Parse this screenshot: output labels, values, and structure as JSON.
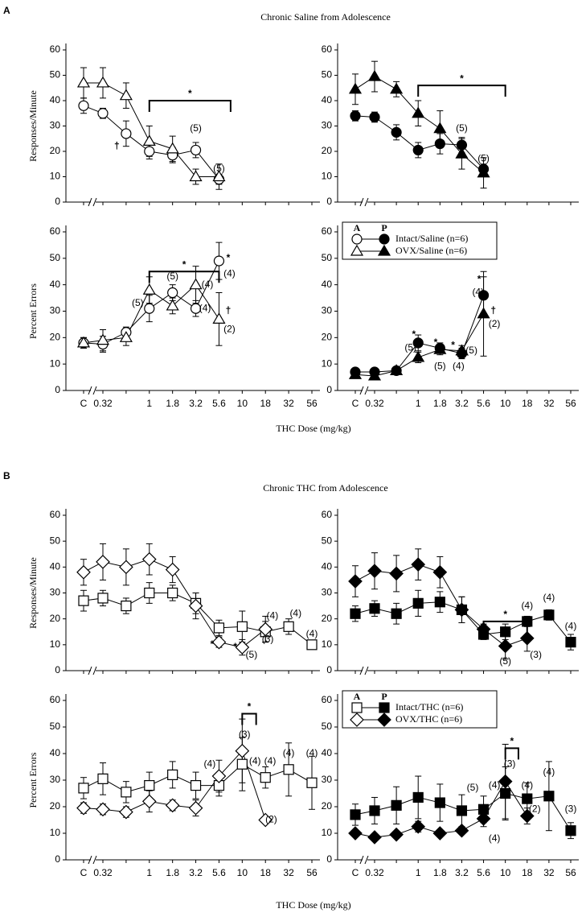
{
  "chart_data": [
    {
      "label": "A",
      "title": "Chronic Saline from Adolescence",
      "xlabel": "THC Dose (mg/kg)",
      "charts": [
        {
          "type": "line",
          "ylabel": "Responses/Minute",
          "ylim": [
            0,
            60
          ],
          "yticks": [
            0,
            10,
            20,
            30,
            40,
            50,
            60
          ],
          "series": [
            {
              "marker": "circle",
              "marker_fill": "white",
              "color": "#000000",
              "values": [
                38,
                35,
                27,
                20,
                18.5,
                20.5,
                9
              ],
              "errors": [
                3,
                2,
                5,
                3,
                3,
                3,
                2
              ]
            },
            {
              "marker": "triangle",
              "marker_fill": "white",
              "color": "#000000",
              "values": [
                47,
                47,
                42,
                24,
                21,
                10,
                10
              ],
              "errors": [
                6,
                6,
                5,
                6,
                5,
                3,
                5
              ]
            }
          ],
          "annotations": [
            {
              "text": "†",
              "x": 1.6,
              "y": 22
            },
            {
              "text": "(5)",
              "x": 5,
              "y": 29
            },
            {
              "text": "(5)",
              "x": 6,
              "y": 13
            }
          ],
          "brackets": [
            {
              "from": 3,
              "to": 6.5,
              "y": 40,
              "label": "*"
            }
          ]
        },
        {
          "type": "line",
          "ylim": [
            0,
            60
          ],
          "yticks": [
            0,
            10,
            20,
            30,
            40,
            50,
            60
          ],
          "series": [
            {
              "marker": "circle",
              "marker_fill": "black",
              "color": "#000000",
              "values": [
                34,
                33.5,
                27.5,
                20.5,
                23,
                22.5,
                13
              ],
              "errors": [
                2,
                2,
                3,
                3,
                4,
                3,
                2
              ]
            },
            {
              "marker": "triangle",
              "marker_fill": "black",
              "color": "#000000",
              "values": [
                44.5,
                49.5,
                44.5,
                35,
                29,
                19,
                11.5
              ],
              "errors": [
                6,
                6,
                3,
                5,
                7,
                6,
                6
              ]
            }
          ],
          "annotations": [
            {
              "text": "(5)",
              "x": 5,
              "y": 29
            },
            {
              "text": "(5)",
              "x": 6,
              "y": 17
            }
          ],
          "brackets": [
            {
              "from": 3,
              "to": 7,
              "y": 46,
              "label": "*"
            }
          ]
        },
        {
          "type": "line",
          "ylabel": "Percent Errors",
          "ylim": [
            0,
            60
          ],
          "yticks": [
            0,
            10,
            20,
            30,
            40,
            50,
            60
          ],
          "categories": [
            "C",
            "0.32",
            null,
            "1",
            "1.8",
            "3.2",
            "5.6",
            "10",
            "18",
            "32",
            "56"
          ],
          "series": [
            {
              "marker": "circle",
              "marker_fill": "white",
              "color": "#000000",
              "values": [
                18,
                17.5,
                22,
                31,
                37,
                31,
                49
              ],
              "errors": [
                2,
                3,
                2,
                5,
                3,
                3,
                7
              ]
            },
            {
              "marker": "triangle",
              "marker_fill": "white",
              "color": "#000000",
              "values": [
                18,
                19,
                20,
                38,
                32,
                40,
                27
              ],
              "errors": [
                2,
                4,
                3,
                5,
                3,
                7,
                10
              ]
            }
          ],
          "annotations": [
            {
              "text": "(5)",
              "x": 2.5,
              "y": 33
            },
            {
              "text": "(5)",
              "x": 4,
              "y": 43
            },
            {
              "text": "(4)",
              "x": 5.4,
              "y": 31
            },
            {
              "text": "(4)",
              "x": 5.5,
              "y": 40
            },
            {
              "text": "*",
              "x": 6.4,
              "y": 50
            },
            {
              "text": "(4)",
              "x": 6.45,
              "y": 44
            },
            {
              "text": "†",
              "x": 6.4,
              "y": 30
            },
            {
              "text": "(2)",
              "x": 6.45,
              "y": 23
            }
          ],
          "brackets": [
            {
              "from": 3,
              "to": 6,
              "y": 45,
              "label": "*"
            }
          ]
        },
        {
          "type": "line",
          "ylim": [
            0,
            60
          ],
          "yticks": [
            0,
            10,
            20,
            30,
            40,
            50,
            60
          ],
          "categories": [
            "C",
            "0.32",
            null,
            "1",
            "1.8",
            "3.2",
            "5.6",
            "10",
            "18",
            "32",
            "56"
          ],
          "legend": {
            "headers": [
              "A",
              "P"
            ],
            "entries": [
              "Intact/Saline (n=6)",
              "OVX/Saline (n=6)"
            ]
          },
          "series": [
            {
              "marker": "circle",
              "marker_fill": "black",
              "color": "#000000",
              "values": [
                7,
                7,
                7.5,
                18,
                16,
                14,
                36
              ],
              "errors": [
                1,
                1,
                1,
                3,
                2,
                2,
                7
              ]
            },
            {
              "marker": "triangle",
              "marker_fill": "black",
              "color": "#000000",
              "values": [
                6,
                5.5,
                7.5,
                12.5,
                15.5,
                15,
                29
              ],
              "errors": [
                1,
                1,
                1,
                2,
                2,
                2,
                16
              ]
            }
          ],
          "annotations": [
            {
              "text": "*",
              "x": 2.8,
              "y": 21
            },
            {
              "text": "(5)",
              "x": 2.65,
              "y": 16
            },
            {
              "text": "*",
              "x": 3.8,
              "y": 18
            },
            {
              "text": "(5)",
              "x": 4,
              "y": 9
            },
            {
              "text": "*",
              "x": 4.6,
              "y": 17
            },
            {
              "text": "(4)",
              "x": 4.85,
              "y": 9
            },
            {
              "text": "(5)",
              "x": 5.45,
              "y": 15
            },
            {
              "text": "*",
              "x": 5.8,
              "y": 42
            },
            {
              "text": "(4)",
              "x": 5.75,
              "y": 37
            },
            {
              "text": "†",
              "x": 6.45,
              "y": 30
            },
            {
              "text": "(2)",
              "x": 6.5,
              "y": 25
            }
          ]
        }
      ]
    },
    {
      "label": "B",
      "title": "Chronic THC from Adolescence",
      "xlabel": "THC Dose (mg/kg)",
      "charts": [
        {
          "type": "line",
          "ylabel": "Responses/Minute",
          "ylim": [
            0,
            60
          ],
          "yticks": [
            0,
            10,
            20,
            30,
            40,
            50,
            60
          ],
          "series": [
            {
              "marker": "square",
              "marker_fill": "white",
              "color": "#000000",
              "values": [
                27,
                28,
                25,
                30,
                30,
                26,
                16.5,
                17,
                15,
                17,
                10
              ],
              "errors": [
                4,
                3,
                3,
                4,
                3,
                4,
                3,
                6,
                4,
                3,
                1
              ]
            },
            {
              "marker": "diamond",
              "marker_fill": "white",
              "color": "#000000",
              "values": [
                38,
                42,
                40,
                43,
                39,
                25,
                11,
                9,
                16
              ],
              "errors": [
                5,
                7,
                7,
                6,
                5,
                5,
                2,
                3,
                5
              ]
            }
          ],
          "annotations": [
            {
              "text": "*",
              "x": 5.7,
              "y": 10
            },
            {
              "text": "*",
              "x": 6.7,
              "y": 9
            },
            {
              "text": "(5)",
              "x": 7.4,
              "y": 6
            },
            {
              "text": "(3)",
              "x": 8.1,
              "y": 12
            },
            {
              "text": "(4)",
              "x": 8.3,
              "y": 21
            },
            {
              "text": "(4)",
              "x": 9.3,
              "y": 22
            },
            {
              "text": "(4)",
              "x": 10,
              "y": 14
            }
          ]
        },
        {
          "type": "line",
          "ylim": [
            0,
            60
          ],
          "yticks": [
            0,
            10,
            20,
            30,
            40,
            50,
            60
          ],
          "series": [
            {
              "marker": "square",
              "marker_fill": "black",
              "color": "#000000",
              "values": [
                22,
                24,
                22,
                26,
                26.5,
                23.5,
                14,
                15,
                19,
                21.5,
                11
              ],
              "errors": [
                3,
                3,
                4,
                5,
                4,
                5,
                2,
                3,
                2,
                2,
                3
              ]
            },
            {
              "marker": "diamond",
              "marker_fill": "black",
              "color": "#000000",
              "values": [
                34.5,
                38.5,
                37.5,
                41,
                38,
                23.5,
                16,
                9.5,
                12.5
              ],
              "errors": [
                6,
                7,
                7,
                6,
                6,
                5,
                2,
                5,
                5
              ]
            }
          ],
          "annotations": [
            {
              "text": "(4)",
              "x": 8,
              "y": 25
            },
            {
              "text": "(4)",
              "x": 9,
              "y": 28
            },
            {
              "text": "(4)",
              "x": 10,
              "y": 17
            },
            {
              "text": "(3)",
              "x": 8.4,
              "y": 6
            },
            {
              "text": "(5)",
              "x": 7,
              "y": 3.5
            }
          ],
          "brackets": [
            {
              "from": 6,
              "to": 8,
              "y": 19,
              "label": "*"
            }
          ]
        },
        {
          "type": "line",
          "ylabel": "Percent Errors",
          "ylim": [
            0,
            60
          ],
          "yticks": [
            0,
            10,
            20,
            30,
            40,
            50,
            60
          ],
          "categories": [
            "C",
            "0.32",
            null,
            "1",
            "1.8",
            "3.2",
            "5.6",
            "10",
            "18",
            "32",
            "56"
          ],
          "series": [
            {
              "marker": "square",
              "marker_fill": "white",
              "color": "#000000",
              "values": [
                27,
                30.5,
                25.5,
                28,
                32,
                28,
                28,
                36,
                31,
                34,
                29
              ],
              "errors": [
                4,
                6,
                4,
                5,
                5,
                5,
                4,
                10,
                4,
                10,
                10
              ]
            },
            {
              "marker": "diamond",
              "marker_fill": "white",
              "color": "#000000",
              "values": [
                19.5,
                19,
                18,
                22,
                20.5,
                19.5,
                31.5,
                41,
                15
              ],
              "errors": [
                2,
                2,
                2,
                4,
                2,
                3,
                6,
                12,
                1
              ]
            }
          ],
          "annotations": [
            {
              "text": "(4)",
              "x": 5.6,
              "y": 36
            },
            {
              "text": "(3)",
              "x": 7.1,
              "y": 47
            },
            {
              "text": "(4)",
              "x": 7.55,
              "y": 37
            },
            {
              "text": "(4)",
              "x": 8.2,
              "y": 37
            },
            {
              "text": "(4)",
              "x": 9,
              "y": 40
            },
            {
              "text": "(4)",
              "x": 10,
              "y": 40
            },
            {
              "text": "(2)",
              "x": 8.25,
              "y": 15
            }
          ],
          "brackets": [
            {
              "from": 7,
              "to": 7.6,
              "y": 55,
              "label": "*"
            }
          ]
        },
        {
          "type": "line",
          "ylim": [
            0,
            60
          ],
          "yticks": [
            0,
            10,
            20,
            30,
            40,
            50,
            60
          ],
          "categories": [
            "C",
            "0.32",
            null,
            "1",
            "1.8",
            "3.2",
            "5.6",
            "10",
            "18",
            "32",
            "56"
          ],
          "legend": {
            "headers": [
              "A",
              "P"
            ],
            "entries": [
              "Intact/THC (n=6)",
              "OVX/THC (n=6)"
            ]
          },
          "series": [
            {
              "marker": "square",
              "marker_fill": "black",
              "color": "#000000",
              "values": [
                17,
                18.5,
                20.5,
                23.5,
                21.5,
                18.5,
                19,
                25,
                23,
                24,
                11
              ],
              "errors": [
                4,
                5,
                7,
                8,
                7,
                6,
                5,
                10,
                6,
                13,
                3
              ]
            },
            {
              "marker": "diamond",
              "marker_fill": "black",
              "color": "#000000",
              "values": [
                10,
                8.5,
                9.5,
                12.5,
                10,
                11,
                15.5,
                29.5,
                16.5
              ],
              "errors": [
                1,
                1,
                1,
                2,
                1,
                1,
                3,
                14,
                3
              ]
            }
          ],
          "annotations": [
            {
              "text": "(5)",
              "x": 5.5,
              "y": 27
            },
            {
              "text": "(4)",
              "x": 6.5,
              "y": 28
            },
            {
              "text": "(3)",
              "x": 7.2,
              "y": 36
            },
            {
              "text": "(4)",
              "x": 8,
              "y": 28
            },
            {
              "text": "(4)",
              "x": 9,
              "y": 33
            },
            {
              "text": "(3)",
              "x": 10,
              "y": 19
            },
            {
              "text": "(4)",
              "x": 6.5,
              "y": 8
            },
            {
              "text": "(2)",
              "x": 8.35,
              "y": 19
            }
          ],
          "brackets": [
            {
              "from": 7,
              "to": 7.6,
              "y": 42,
              "label": "*"
            }
          ]
        }
      ]
    }
  ]
}
